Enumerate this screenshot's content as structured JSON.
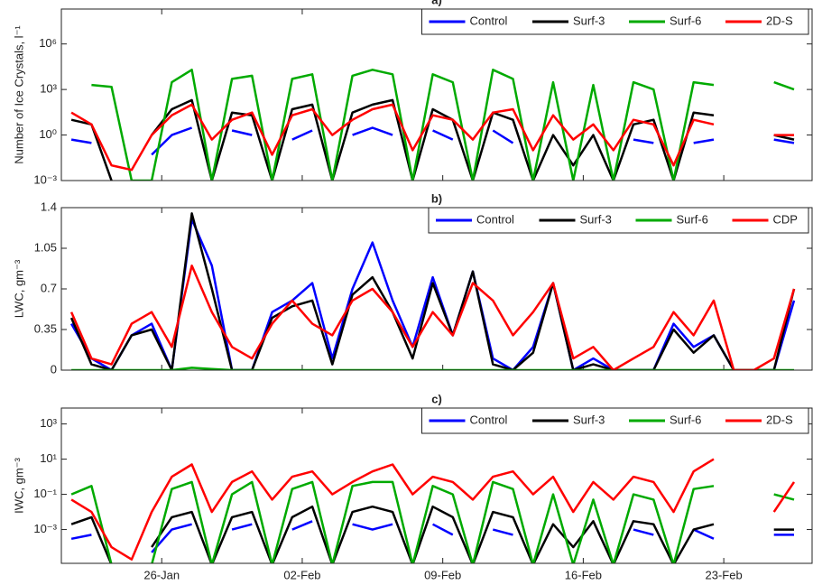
{
  "chart_data": [
    {
      "type": "line",
      "title": "a)",
      "ylabel": "Number of Ice Crystals, l⁻¹",
      "log": true,
      "legend": "upper right",
      "x": [
        0.5,
        1.5,
        2.5,
        3.5,
        4.5,
        5.5,
        6.5,
        7.5,
        8.5,
        9.5,
        10.5,
        11.5,
        12.5,
        13.5,
        14.5,
        15.5,
        16.5,
        17.5,
        18.5,
        19.5,
        20.5,
        21.5,
        22.5,
        23.5,
        24.5,
        25.5,
        26.5,
        27.5,
        28.5,
        29.5,
        30.5,
        31.5,
        32.5,
        33.5,
        34.5,
        35.5,
        36.5
      ],
      "xlim": [
        0,
        37.4
      ],
      "xticks": [
        5,
        12,
        19,
        26,
        33
      ],
      "ylim": [
        0.001,
        200000000
      ],
      "yticks": [
        {
          "value": 0.001,
          "label": "10⁻³"
        },
        {
          "value": 1,
          "label": "10⁰"
        },
        {
          "value": 1000,
          "label": "10³"
        },
        {
          "value": 1000000,
          "label": "10⁶"
        }
      ],
      "series": [
        {
          "name": "Control",
          "color": "#0000ff",
          "values": [
            0.5,
            0.3,
            null,
            null,
            0.05,
            1,
            3,
            null,
            2,
            1,
            null,
            0.5,
            2,
            null,
            1,
            3,
            1,
            null,
            2,
            0.5,
            null,
            2,
            0.3,
            null,
            0.1,
            null,
            0.3,
            null,
            0.5,
            0.3,
            null,
            0.3,
            0.5,
            null,
            null,
            0.5,
            0.3
          ]
        },
        {
          "name": "Surf-3",
          "color": "#000000",
          "values": [
            10,
            5,
            0.001,
            null,
            1,
            50,
            200,
            0.001,
            30,
            20,
            0.001,
            50,
            100,
            0.001,
            30,
            100,
            200,
            0.001,
            50,
            10,
            0.001,
            30,
            10,
            0.001,
            1,
            0.01,
            1,
            0.001,
            5,
            10,
            0.001,
            30,
            20,
            null,
            null,
            1,
            0.5
          ]
        },
        {
          "name": "Surf-6",
          "color": "#00aa00",
          "values": [
            null,
            2000,
            1500,
            0.001,
            0.001,
            3000,
            20000,
            0.001,
            5000,
            8000,
            0.001,
            5000,
            10000,
            0.001,
            8000,
            20000,
            10000,
            0.001,
            10000,
            3000,
            0.001,
            20000,
            5000,
            0.001,
            3000,
            0.001,
            2000,
            0.001,
            3000,
            1000,
            0.001,
            3000,
            2000,
            null,
            null,
            3000,
            1000
          ]
        },
        {
          "name": "2D-S",
          "color": "#ff0000",
          "values": [
            30,
            5,
            0.01,
            0.005,
            1,
            20,
            100,
            0.5,
            10,
            30,
            0.05,
            20,
            50,
            1,
            10,
            50,
            100,
            0.1,
            20,
            10,
            0.5,
            30,
            50,
            0.1,
            20,
            0.5,
            5,
            0.1,
            10,
            5,
            0.01,
            10,
            5,
            null,
            null,
            1,
            1
          ]
        }
      ]
    },
    {
      "type": "line",
      "title": "b)",
      "ylabel": "LWC, gm⁻³",
      "log": false,
      "legend": "upper right",
      "x": [
        0.5,
        1.5,
        2.5,
        3.5,
        4.5,
        5.5,
        6.5,
        7.5,
        8.5,
        9.5,
        10.5,
        11.5,
        12.5,
        13.5,
        14.5,
        15.5,
        16.5,
        17.5,
        18.5,
        19.5,
        20.5,
        21.5,
        22.5,
        23.5,
        24.5,
        25.5,
        26.5,
        27.5,
        28.5,
        29.5,
        30.5,
        31.5,
        32.5,
        33.5,
        34.5,
        35.5,
        36.5
      ],
      "xlim": [
        0,
        37.4
      ],
      "xticks": [
        5,
        12,
        19,
        26,
        33
      ],
      "ylim": [
        0,
        1.4
      ],
      "yticks": [
        0,
        0.35,
        0.7,
        1.05,
        1.4
      ],
      "series": [
        {
          "name": "Control",
          "color": "#0000ff",
          "values": [
            0.4,
            0.1,
            0,
            0.3,
            0.4,
            0,
            1.3,
            0.9,
            0,
            0,
            0.5,
            0.6,
            0.75,
            0.1,
            0.7,
            1.1,
            0.6,
            0.2,
            0.8,
            0.3,
            0.85,
            0.1,
            0,
            0.2,
            0.75,
            0,
            0.1,
            0,
            0,
            0,
            0.4,
            0.2,
            0.3,
            0,
            0,
            0,
            0.6
          ]
        },
        {
          "name": "Surf-3",
          "color": "#000000",
          "values": [
            0.45,
            0.05,
            0,
            0.3,
            0.35,
            0,
            1.35,
            0.7,
            0,
            0,
            0.45,
            0.55,
            0.6,
            0.05,
            0.65,
            0.8,
            0.5,
            0.1,
            0.75,
            0.3,
            0.85,
            0.05,
            0,
            0.15,
            0.75,
            0,
            0.05,
            0,
            0,
            0,
            0.35,
            0.15,
            0.3,
            0,
            0,
            0,
            0.7
          ]
        },
        {
          "name": "Surf-6",
          "color": "#00aa00",
          "values": [
            0,
            0,
            0,
            0,
            0,
            0,
            0.02,
            0.01,
            0,
            0,
            0,
            0,
            0,
            0,
            0,
            0,
            0,
            0,
            0,
            0,
            0,
            0,
            0,
            0,
            0,
            0,
            0,
            0,
            0,
            0,
            0,
            0,
            0,
            0,
            0,
            0,
            0
          ]
        },
        {
          "name": "CDP",
          "color": "#ff0000",
          "values": [
            0.5,
            0.1,
            0.05,
            0.4,
            0.5,
            0.2,
            0.9,
            0.5,
            0.2,
            0.1,
            0.4,
            0.6,
            0.4,
            0.3,
            0.6,
            0.7,
            0.5,
            0.2,
            0.5,
            0.3,
            0.75,
            0.6,
            0.3,
            0.5,
            0.75,
            0.1,
            0.2,
            0,
            0.1,
            0.2,
            0.5,
            0.3,
            0.6,
            0,
            0,
            0.1,
            0.7
          ]
        }
      ]
    },
    {
      "type": "line",
      "title": "c)",
      "ylabel": "IWC, gm⁻³",
      "log": true,
      "legend": "upper right",
      "x": [
        0.5,
        1.5,
        2.5,
        3.5,
        4.5,
        5.5,
        6.5,
        7.5,
        8.5,
        9.5,
        10.5,
        11.5,
        12.5,
        13.5,
        14.5,
        15.5,
        16.5,
        17.5,
        18.5,
        19.5,
        20.5,
        21.5,
        22.5,
        23.5,
        24.5,
        25.5,
        26.5,
        27.5,
        28.5,
        29.5,
        30.5,
        31.5,
        32.5,
        33.5,
        34.5,
        35.5,
        36.5
      ],
      "xlim": [
        0,
        37.4
      ],
      "xticks": [
        {
          "value": 5,
          "label": "26-Jan"
        },
        {
          "value": 12,
          "label": "02-Feb"
        },
        {
          "value": 19,
          "label": "09-Feb"
        },
        {
          "value": 26,
          "label": "16-Feb"
        },
        {
          "value": 33,
          "label": "23-Feb"
        }
      ],
      "ylim": [
        1.2e-05,
        8000
      ],
      "yticks": [
        {
          "value": 0.001,
          "label": "10⁻³"
        },
        {
          "value": 0.1,
          "label": "10⁻¹"
        },
        {
          "value": 10,
          "label": "10¹"
        },
        {
          "value": 1000,
          "label": "10³"
        }
      ],
      "series": [
        {
          "name": "Control",
          "color": "#0000ff",
          "values": [
            0.0003,
            0.0005,
            null,
            null,
            5e-05,
            0.001,
            0.002,
            null,
            0.001,
            0.002,
            null,
            0.001,
            0.003,
            null,
            0.002,
            0.001,
            0.002,
            null,
            0.002,
            0.0005,
            null,
            0.001,
            0.0005,
            null,
            0.0003,
            null,
            0.0005,
            null,
            0.001,
            0.0005,
            null,
            0.001,
            0.0003,
            null,
            null,
            0.0005,
            0.0005
          ]
        },
        {
          "name": "Surf-3",
          "color": "#000000",
          "values": [
            0.002,
            0.005,
            1e-05,
            null,
            0.0001,
            0.005,
            0.01,
            1e-05,
            0.005,
            0.01,
            1e-05,
            0.005,
            0.02,
            1e-05,
            0.01,
            0.02,
            0.01,
            1e-05,
            0.02,
            0.005,
            1e-05,
            0.01,
            0.005,
            1e-05,
            0.002,
            0.0001,
            0.003,
            1e-05,
            0.003,
            0.002,
            1e-05,
            0.001,
            0.002,
            null,
            null,
            0.001,
            0.001
          ]
        },
        {
          "name": "Surf-6",
          "color": "#00aa00",
          "values": [
            0.1,
            0.3,
            1e-05,
            null,
            1e-05,
            0.2,
            0.5,
            1e-05,
            0.1,
            0.5,
            1e-05,
            0.2,
            0.5,
            1e-05,
            0.3,
            0.5,
            0.5,
            1e-05,
            0.3,
            0.1,
            1e-05,
            0.5,
            0.2,
            1e-05,
            0.1,
            1e-05,
            0.05,
            1e-05,
            0.1,
            0.05,
            1e-05,
            0.2,
            0.3,
            null,
            null,
            0.1,
            0.05
          ]
        },
        {
          "name": "2D-S",
          "color": "#ff0000",
          "values": [
            0.05,
            0.01,
            0.0001,
            2e-05,
            0.01,
            1,
            5,
            0.01,
            0.5,
            2,
            0.05,
            1,
            2,
            0.1,
            0.5,
            2,
            5,
            0.1,
            1,
            0.5,
            0.05,
            1,
            2,
            0.1,
            1,
            0.01,
            0.5,
            0.05,
            1,
            0.5,
            0.01,
            2,
            10,
            null,
            null,
            0.01,
            0.5
          ]
        }
      ]
    }
  ]
}
